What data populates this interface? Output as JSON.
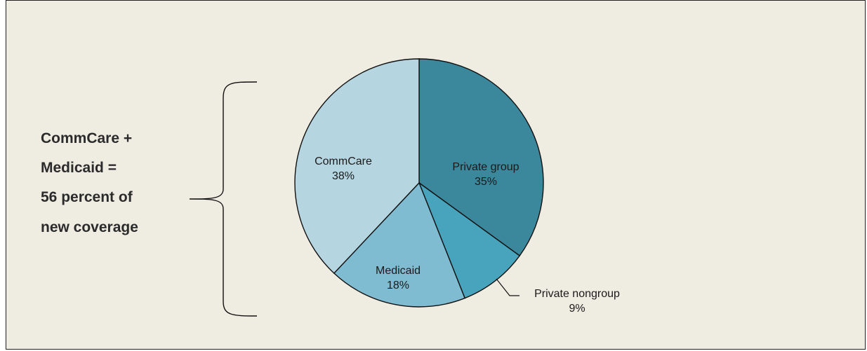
{
  "chart_data": {
    "type": "pie",
    "title": "",
    "slices": [
      {
        "label": "Private group",
        "value": 35,
        "value_label": "35%",
        "color": "#3B879B"
      },
      {
        "label": "Private nongroup",
        "value": 9,
        "value_label": "9%",
        "color": "#47A4BC"
      },
      {
        "label": "Medicaid",
        "value": 18,
        "value_label": "18%",
        "color": "#7FBCD2"
      },
      {
        "label": "CommCare",
        "value": 38,
        "value_label": "38%",
        "color": "#B5D5E0"
      }
    ],
    "start": "12 o'clock",
    "direction": "clockwise",
    "legend": "none"
  },
  "annotation": {
    "lines": [
      "CommCare +",
      "Medicaid =",
      "56 percent of",
      "new coverage"
    ]
  },
  "colors": {
    "background": "#EFECE2",
    "border": "#222222",
    "stroke": "#111111"
  }
}
